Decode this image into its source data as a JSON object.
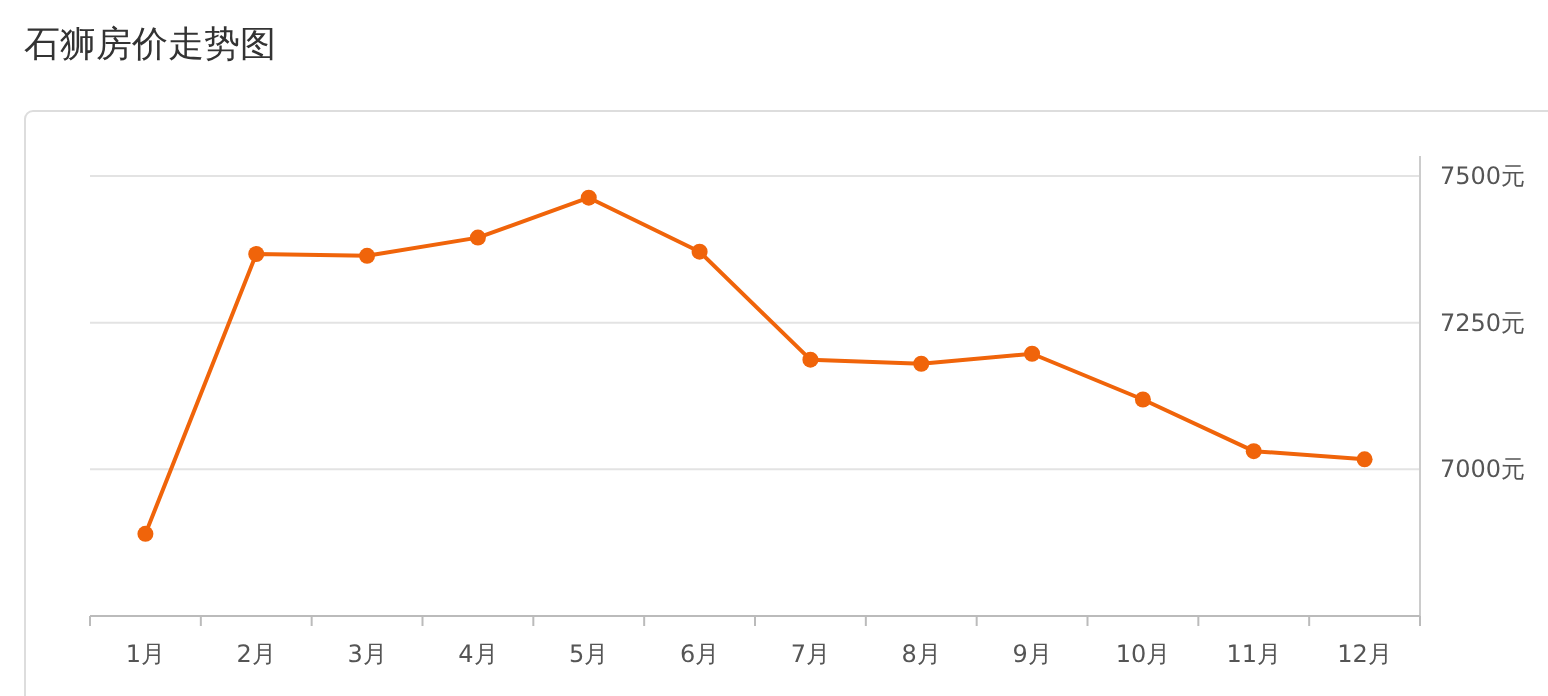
{
  "chart_data": {
    "type": "line",
    "title": "石狮房价走势图",
    "categories": [
      "1月",
      "2月",
      "3月",
      "4月",
      "5月",
      "6月",
      "7月",
      "8月",
      "9月",
      "10月",
      "11月",
      "12月"
    ],
    "series": [
      {
        "color": "#f0640a",
        "values": [
          6890,
          7367,
          7364,
          7395,
          7463,
          7371,
          7187,
          7180,
          7197,
          7119,
          7031,
          7017
        ]
      }
    ],
    "ylim": [
      6750,
      7500
    ],
    "yticks": [
      {
        "value": 7000,
        "label": "7000元"
      },
      {
        "value": 7250,
        "label": "7250元"
      },
      {
        "value": 7500,
        "label": "7500元"
      }
    ],
    "grid": "y",
    "marker": "circle",
    "line_style": "solid"
  }
}
